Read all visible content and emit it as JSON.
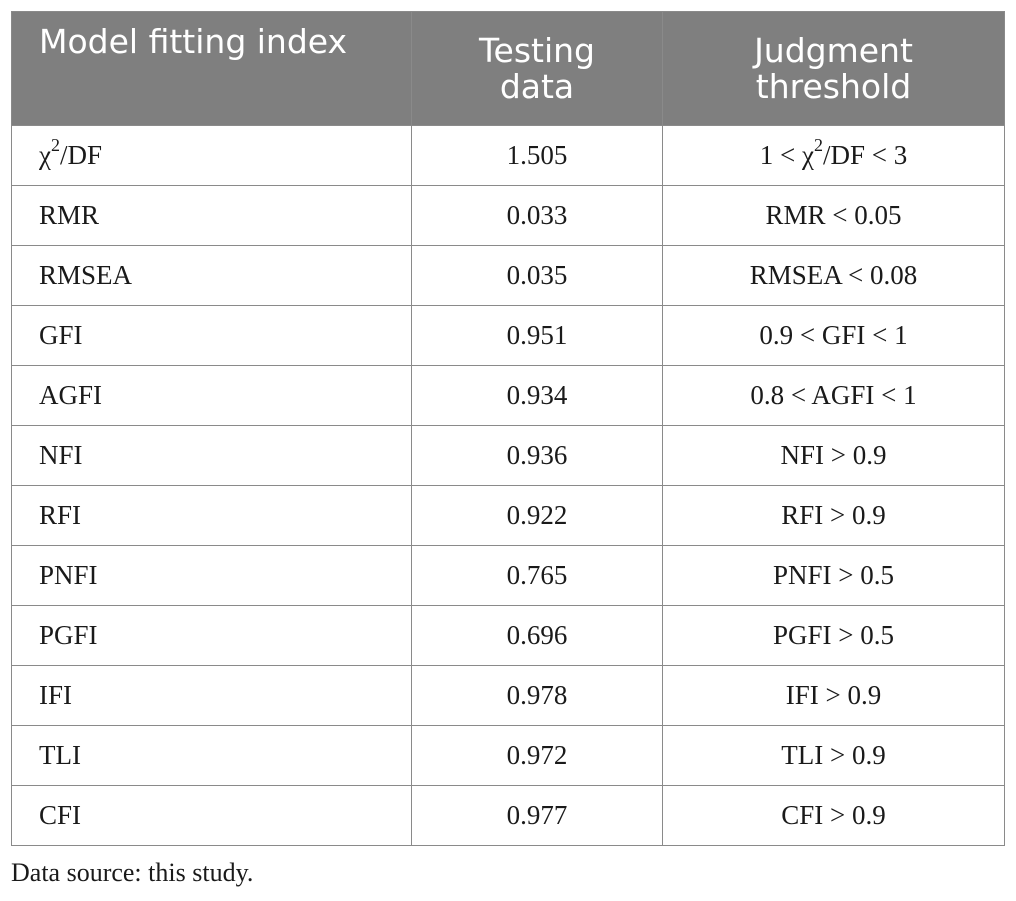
{
  "table": {
    "headers": {
      "col1": "Model fitting index",
      "col2_line1": "Testing",
      "col2_line2": "data",
      "col3_line1": "Judgment",
      "col3_line2": "threshold"
    },
    "chi_row": {
      "name_pre": "χ",
      "name_sup": "2",
      "name_post": "/DF",
      "value": "1.505",
      "threshold_pre": "1 < χ",
      "threshold_sup": "2",
      "threshold_post": "/DF < 3"
    },
    "rows": [
      {
        "name": "RMR",
        "value": "0.033",
        "threshold": "RMR < 0.05"
      },
      {
        "name": "RMSEA",
        "value": "0.035",
        "threshold": "RMSEA < 0.08"
      },
      {
        "name": "GFI",
        "value": "0.951",
        "threshold": "0.9 < GFI < 1"
      },
      {
        "name": "AGFI",
        "value": "0.934",
        "threshold": "0.8 < AGFI < 1"
      },
      {
        "name": "NFI",
        "value": "0.936",
        "threshold": "NFI > 0.9"
      },
      {
        "name": "RFI",
        "value": "0.922",
        "threshold": "RFI > 0.9"
      },
      {
        "name": "PNFI",
        "value": "0.765",
        "threshold": "PNFI > 0.5"
      },
      {
        "name": "PGFI",
        "value": "0.696",
        "threshold": "PGFI > 0.5"
      },
      {
        "name": "IFI",
        "value": "0.978",
        "threshold": "IFI > 0.9"
      },
      {
        "name": "TLI",
        "value": "0.972",
        "threshold": "TLI > 0.9"
      },
      {
        "name": "CFI",
        "value": "0.977",
        "threshold": "CFI > 0.9"
      }
    ]
  },
  "note": "Data source: this study."
}
